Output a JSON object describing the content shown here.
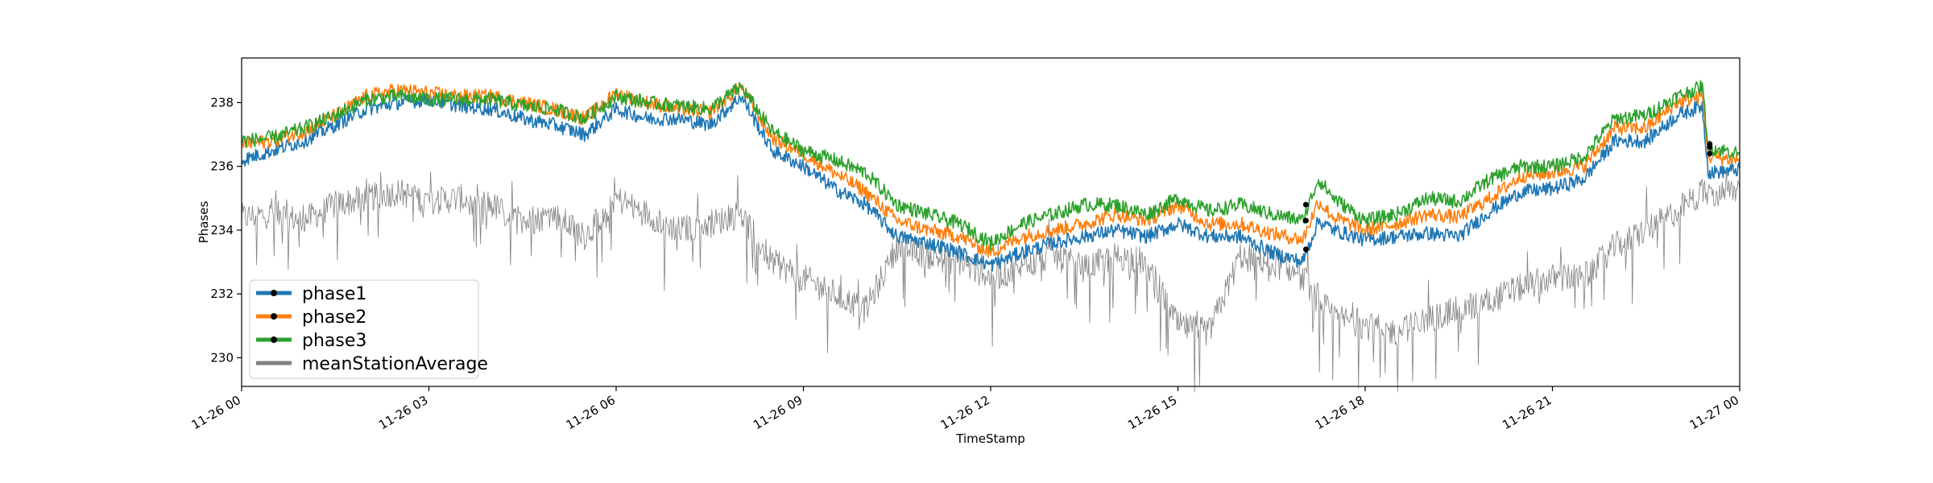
{
  "chart_data": {
    "type": "line",
    "xlabel": "TimeStamp",
    "ylabel": "Phases",
    "x_ticks": [
      "11-26 00",
      "11-26 03",
      "11-26 06",
      "11-26 09",
      "11-26 12",
      "11-26 15",
      "11-26 18",
      "11-26 21",
      "11-27 00"
    ],
    "x_range_hours": [
      0,
      24
    ],
    "y_ticks": [
      230,
      232,
      234,
      236,
      238
    ],
    "ylim": [
      229.1,
      239.4
    ],
    "grid": false,
    "legend_position": "lower-left",
    "series": [
      {
        "name": "phase1",
        "color": "#1f77b4",
        "x": [
          0,
          0.5,
          1,
          1.5,
          2,
          2.5,
          3,
          3.5,
          4,
          4.5,
          5,
          5.5,
          6,
          6.5,
          7,
          7.5,
          8,
          8.5,
          9,
          9.5,
          10,
          10.5,
          11,
          11.5,
          12,
          12.5,
          13,
          13.5,
          14,
          14.5,
          15,
          15.5,
          16,
          16.5,
          17,
          17.25,
          17.5,
          18,
          18.5,
          19,
          19.5,
          20,
          20.5,
          21,
          21.5,
          22,
          22.5,
          23,
          23.4,
          23.5,
          24
        ],
        "y": [
          236.2,
          236.5,
          236.8,
          237.3,
          237.8,
          238.0,
          238.1,
          237.9,
          237.8,
          237.5,
          237.3,
          237.0,
          237.8,
          237.5,
          237.5,
          237.3,
          238.2,
          236.5,
          236.0,
          235.3,
          234.8,
          233.8,
          233.6,
          233.3,
          232.9,
          233.3,
          233.6,
          233.8,
          234.0,
          233.8,
          234.2,
          233.8,
          233.8,
          233.3,
          233.0,
          234.3,
          234.0,
          233.7,
          233.8,
          233.9,
          233.8,
          234.6,
          235.2,
          235.3,
          235.6,
          236.8,
          236.8,
          237.6,
          237.9,
          235.8,
          235.9
        ]
      },
      {
        "name": "phase2",
        "color": "#ff7f0e",
        "x": [
          0,
          0.5,
          1,
          1.5,
          2,
          2.5,
          3,
          3.5,
          4,
          4.5,
          5,
          5.5,
          6,
          6.5,
          7,
          7.5,
          8,
          8.5,
          9,
          9.5,
          10,
          10.5,
          11,
          11.5,
          12,
          12.5,
          13,
          13.5,
          14,
          14.5,
          15,
          15.5,
          16,
          16.5,
          17,
          17.25,
          17.5,
          18,
          18.5,
          19,
          19.5,
          20,
          20.5,
          21,
          21.5,
          22,
          22.5,
          23,
          23.4,
          23.5,
          24
        ],
        "y": [
          236.7,
          236.8,
          237.1,
          237.6,
          238.2,
          238.4,
          238.3,
          238.2,
          238.2,
          238.0,
          237.8,
          237.5,
          238.3,
          238.0,
          237.8,
          237.7,
          238.5,
          236.9,
          236.4,
          235.8,
          235.2,
          234.3,
          234.0,
          233.8,
          233.3,
          233.8,
          234.0,
          234.2,
          234.5,
          234.3,
          234.8,
          234.2,
          234.2,
          233.9,
          233.7,
          234.9,
          234.4,
          234.0,
          234.2,
          234.5,
          234.4,
          235.0,
          235.7,
          235.8,
          236.0,
          237.2,
          237.2,
          238.0,
          238.2,
          236.3,
          236.2
        ]
      },
      {
        "name": "phase3",
        "color": "#2ca02c",
        "x": [
          0,
          0.5,
          1,
          1.5,
          2,
          2.5,
          3,
          3.5,
          4,
          4.5,
          5,
          5.5,
          6,
          6.5,
          7,
          7.5,
          8,
          8.5,
          9,
          9.5,
          10,
          10.5,
          11,
          11.5,
          12,
          12.5,
          13,
          13.5,
          14,
          14.5,
          15,
          15.5,
          16,
          16.5,
          17,
          17.25,
          17.5,
          18,
          18.5,
          19,
          19.5,
          20,
          20.5,
          21,
          21.5,
          22,
          22.5,
          23,
          23.4,
          23.5,
          24
        ],
        "y": [
          236.8,
          236.9,
          237.2,
          237.6,
          238.1,
          238.2,
          238.1,
          238.1,
          238.1,
          237.9,
          237.8,
          237.5,
          238.2,
          238.0,
          237.9,
          237.8,
          238.5,
          237.1,
          236.5,
          236.2,
          235.8,
          234.8,
          234.5,
          234.2,
          233.6,
          234.2,
          234.5,
          234.8,
          234.8,
          234.5,
          235.0,
          234.6,
          234.8,
          234.5,
          234.3,
          235.6,
          235.0,
          234.3,
          234.5,
          235.0,
          234.9,
          235.6,
          236.0,
          236.0,
          236.3,
          237.5,
          237.6,
          238.2,
          238.5,
          236.6,
          236.4
        ]
      },
      {
        "name": "meanStationAverage",
        "color": "#808080",
        "x": [
          0,
          0.5,
          1,
          1.5,
          2,
          2.5,
          3,
          3.5,
          4,
          4.5,
          5,
          5.5,
          6,
          6.5,
          7,
          7.5,
          8,
          8.5,
          9,
          9.5,
          10,
          10.5,
          11,
          11.5,
          12,
          12.5,
          13,
          13.5,
          14,
          14.5,
          15,
          15.5,
          16,
          16.5,
          17,
          17.25,
          17.5,
          18,
          18.5,
          19,
          19.5,
          20,
          20.5,
          21,
          21.5,
          22,
          22.5,
          23,
          23.4,
          23.5,
          24
        ],
        "y": [
          234.4,
          234.5,
          234.3,
          234.8,
          235.0,
          235.2,
          234.9,
          235.0,
          234.8,
          234.2,
          234.5,
          233.8,
          235.0,
          234.5,
          234.0,
          234.2,
          234.5,
          233.0,
          232.5,
          232.0,
          231.5,
          233.5,
          233.2,
          233.0,
          232.5,
          232.8,
          233.2,
          232.8,
          233.2,
          233.0,
          231.0,
          230.8,
          233.2,
          233.0,
          232.5,
          231.8,
          231.3,
          231.0,
          230.8,
          231.2,
          231.5,
          231.8,
          232.2,
          232.5,
          232.5,
          233.5,
          234.0,
          234.6,
          235.2,
          235.0,
          235.3
        ]
      }
    ]
  },
  "legend": {
    "items": [
      {
        "label": "phase1",
        "color": "#1f77b4",
        "marker": true
      },
      {
        "label": "phase2",
        "color": "#ff7f0e",
        "marker": true
      },
      {
        "label": "phase3",
        "color": "#2ca02c",
        "marker": true
      },
      {
        "label": "meanStationAverage",
        "color": "#808080",
        "marker": false
      }
    ]
  }
}
